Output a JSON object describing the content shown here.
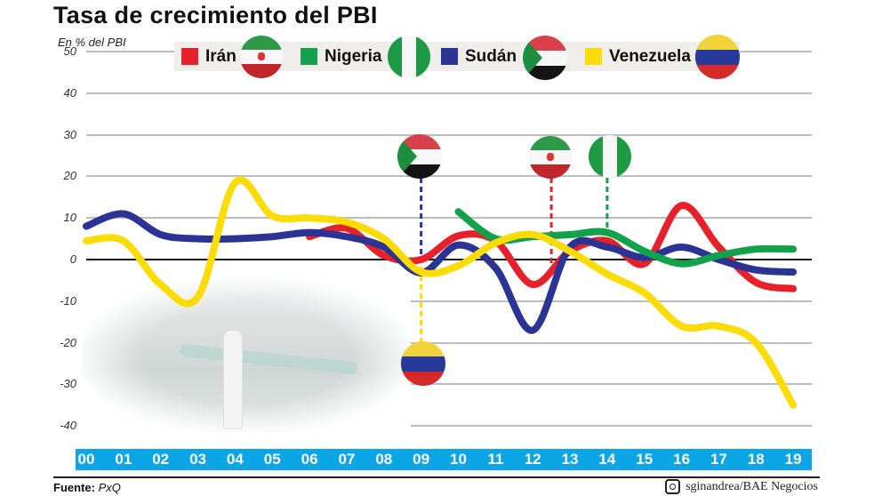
{
  "header": {
    "title": "Tasa de crecimiento del PBI",
    "unit_label": "En % del PBI"
  },
  "legend": [
    {
      "label": "Irán",
      "color": "#e8202a",
      "flag": "iran-flag-icon"
    },
    {
      "label": "Nigeria",
      "color": "#13a14b",
      "flag": "nigeria-flag-icon"
    },
    {
      "label": "Sudán",
      "color": "#2b3494",
      "flag": "sudan-flag-icon"
    },
    {
      "label": "Venezuela",
      "color": "#fbdc06",
      "flag": "venezuela-flag-icon"
    }
  ],
  "y_ticks": [
    "50",
    "40",
    "30",
    "20",
    "10",
    "0",
    "-10",
    "-20",
    "-30",
    "-40"
  ],
  "x_ticks": [
    "00",
    "01",
    "02",
    "03",
    "04",
    "05",
    "06",
    "07",
    "08",
    "09",
    "10",
    "11",
    "12",
    "13",
    "14",
    "15",
    "16",
    "17",
    "18",
    "19"
  ],
  "footer": {
    "source_label": "Fuente:",
    "source_value": "PxQ",
    "credit": "sginandrea/BAE Negocios"
  },
  "colors": {
    "axis_bar": "#0aa6e6",
    "grid": "#bdbdbd",
    "zero_line": "#111111"
  },
  "chart_data": {
    "type": "line",
    "title": "Tasa de crecimiento del PBI",
    "subtitle": "En % del PBI",
    "xlabel": "",
    "ylabel": "En % del PBI",
    "ylim": [
      -40,
      50
    ],
    "grid": true,
    "legend_position": "top",
    "x": [
      "00",
      "01",
      "02",
      "03",
      "04",
      "05",
      "06",
      "07",
      "08",
      "09",
      "10",
      "11",
      "12",
      "13",
      "14",
      "15",
      "16",
      "17",
      "18",
      "19"
    ],
    "series": [
      {
        "name": "Irán",
        "color": "#e8202a",
        "start_index": 6,
        "values": [
          null,
          null,
          null,
          null,
          null,
          null,
          5.5,
          7.5,
          1,
          0,
          5.7,
          4.5,
          -6,
          2,
          4.5,
          -1,
          13,
          3,
          -5.5,
          -7
        ]
      },
      {
        "name": "Nigeria",
        "color": "#13a14b",
        "start_index": 10,
        "values": [
          null,
          null,
          null,
          null,
          null,
          null,
          null,
          null,
          null,
          null,
          11.5,
          5,
          5.5,
          6,
          6.5,
          2,
          -1,
          1,
          2.5,
          2.5
        ]
      },
      {
        "name": "Sudán",
        "color": "#2b3494",
        "start_index": 0,
        "values": [
          8,
          11,
          6,
          5,
          5,
          5.5,
          6.5,
          5.5,
          3,
          -3.2,
          3.5,
          -2,
          -17,
          3,
          3,
          0.5,
          3,
          0,
          -2.5,
          -3
        ]
      },
      {
        "name": "Venezuela",
        "color": "#fbdc06",
        "start_index": 0,
        "values": [
          4.5,
          4.5,
          -6,
          -9,
          18.5,
          10.5,
          10,
          9,
          5,
          -3,
          -1.5,
          4,
          6,
          2,
          -3.5,
          -8,
          -16,
          -16,
          -20,
          -35
        ]
      }
    ],
    "annotations": [
      {
        "type": "flag-marker",
        "country": "Sudán",
        "x": "09",
        "position": "above"
      },
      {
        "type": "flag-marker",
        "country": "Venezuela",
        "x": "09",
        "position": "below"
      },
      {
        "type": "flag-marker",
        "country": "Irán",
        "x": "12.5",
        "position": "above"
      },
      {
        "type": "flag-marker",
        "country": "Nigeria",
        "x": "14",
        "position": "above"
      }
    ]
  }
}
